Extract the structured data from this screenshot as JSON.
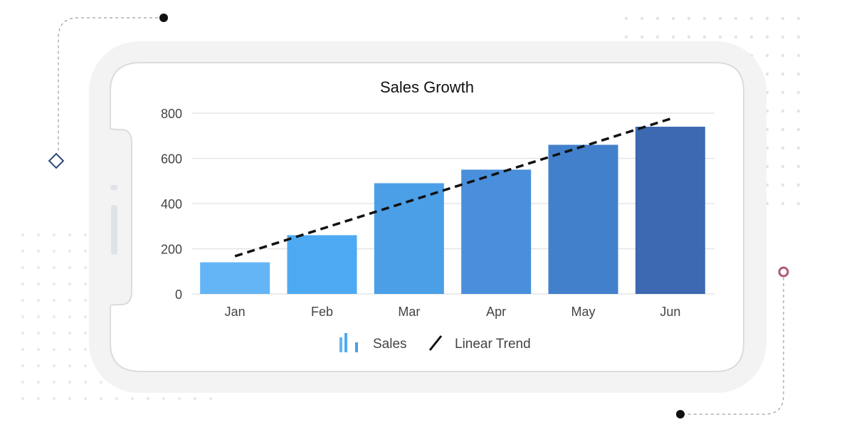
{
  "chart_data": {
    "type": "bar",
    "title": "Sales Growth",
    "categories": [
      "Jan",
      "Feb",
      "Mar",
      "Apr",
      "May",
      "Jun"
    ],
    "series": [
      {
        "name": "Sales",
        "type": "bar",
        "values": [
          140,
          260,
          490,
          550,
          660,
          740
        ],
        "colors": [
          "#64b5f6",
          "#4daaf2",
          "#4a9fe6",
          "#4a8fdb",
          "#4280cc",
          "#3c69b1"
        ]
      },
      {
        "name": "Linear Trend",
        "type": "line",
        "style": "dashed",
        "color": "#111111",
        "values": [
          167,
          289,
          411,
          532,
          654,
          775
        ]
      }
    ],
    "yticks": [
      0,
      200,
      400,
      600,
      800
    ],
    "ylim": [
      0,
      800
    ],
    "grid": true,
    "legend": "bottom"
  }
}
